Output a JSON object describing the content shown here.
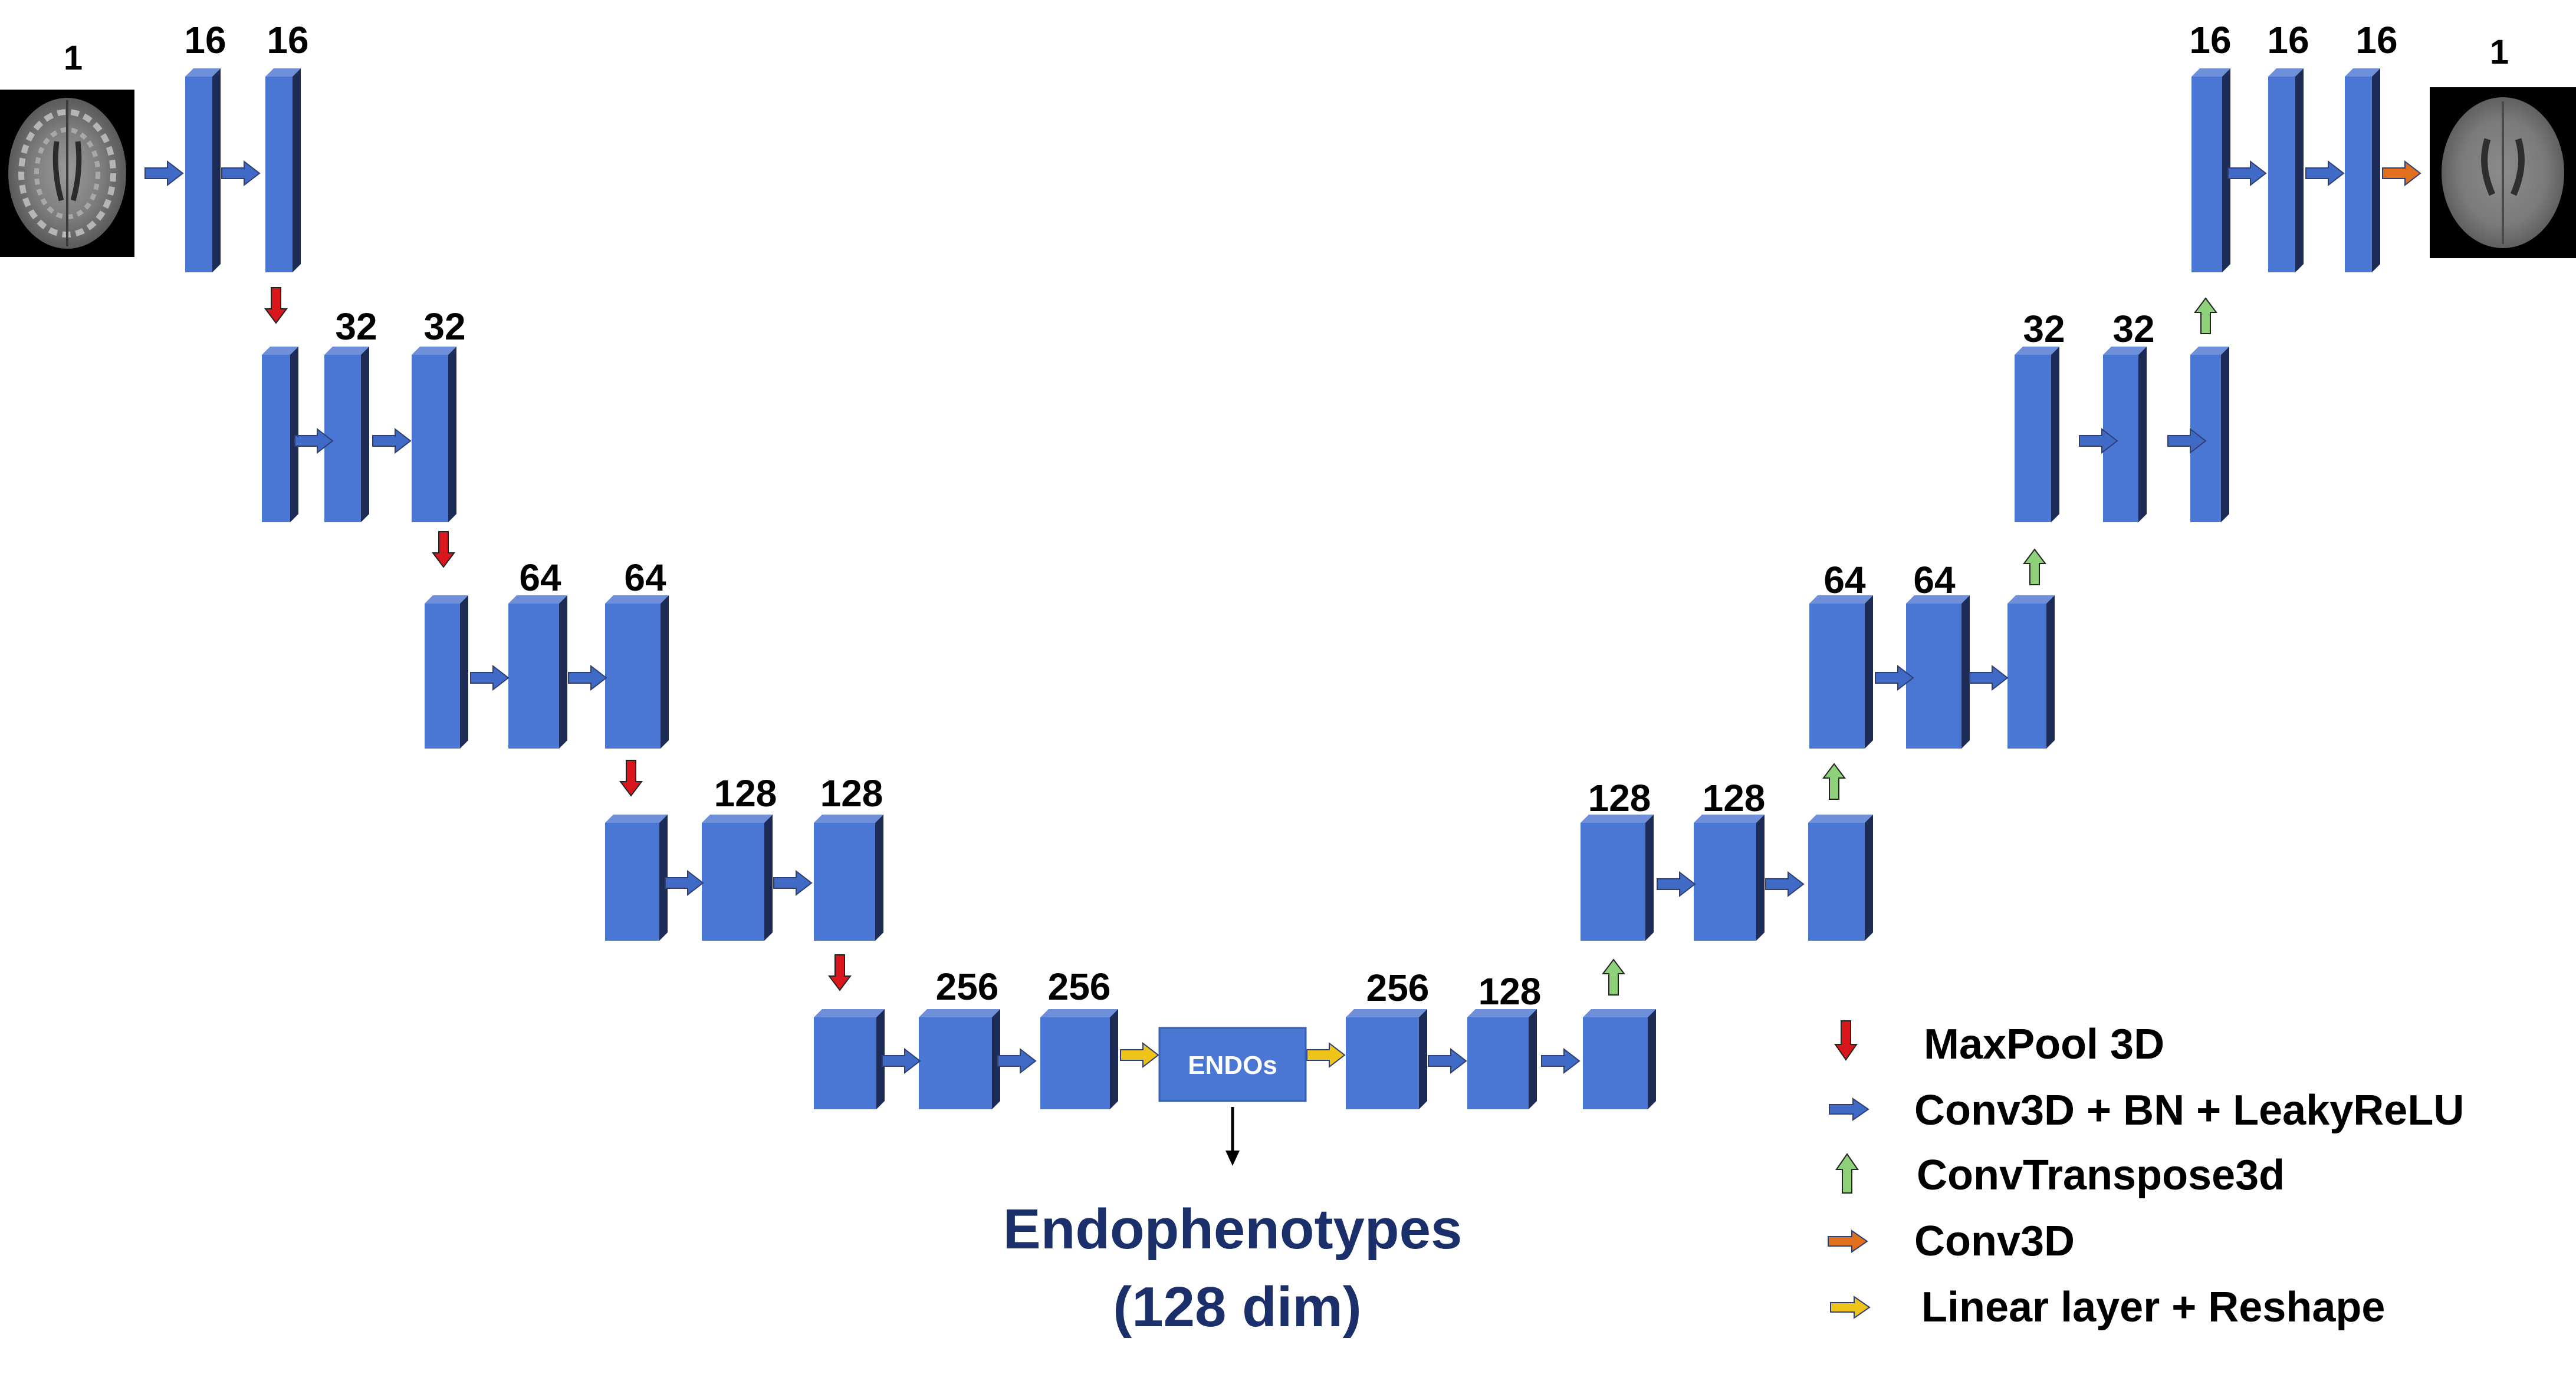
{
  "colors": {
    "block_front": "#4a77d4",
    "block_side": "#1c2c57",
    "block_top": "#6f8fd8",
    "conv_arrow": "#3f6bc6",
    "maxpool_arrow": "#d9161c",
    "convtranspose_arrow": "#8fd07a",
    "conv3d_arrow": "#e0701e",
    "linear_arrow": "#efc419",
    "title": "#1b2f6b"
  },
  "images": {
    "input_name": "brain-mri-slice",
    "output_name": "reconstructed-brain-slice"
  },
  "channels": {
    "in_image": "1",
    "enc1": [
      "16",
      "16"
    ],
    "enc2": [
      "32",
      "32"
    ],
    "enc3": [
      "64",
      "64"
    ],
    "enc4": [
      "128",
      "128"
    ],
    "bottleneck": [
      "256",
      "256"
    ],
    "dec_bottom": [
      "256",
      "128"
    ],
    "dec4": [
      "128",
      "128"
    ],
    "dec3": [
      "64",
      "64"
    ],
    "dec2": [
      "32",
      "32"
    ],
    "dec1": [
      "16",
      "16",
      "16"
    ],
    "out_image": "1"
  },
  "endos_label": "ENDOs",
  "endophenotypes": {
    "line1": "Endophenotypes",
    "line2": "(128 dim)"
  },
  "legend": {
    "items": [
      {
        "label": "MaxPool 3D",
        "icon": "red-down-arrow-icon"
      },
      {
        "label": "Conv3D + BN + LeakyReLU",
        "icon": "blue-right-arrow-icon"
      },
      {
        "label": "ConvTranspose3d",
        "icon": "green-up-arrow-icon"
      },
      {
        "label": "Conv3D",
        "icon": "orange-right-arrow-icon"
      },
      {
        "label": "Linear layer + Reshape",
        "icon": "yellow-right-arrow-icon"
      }
    ]
  }
}
